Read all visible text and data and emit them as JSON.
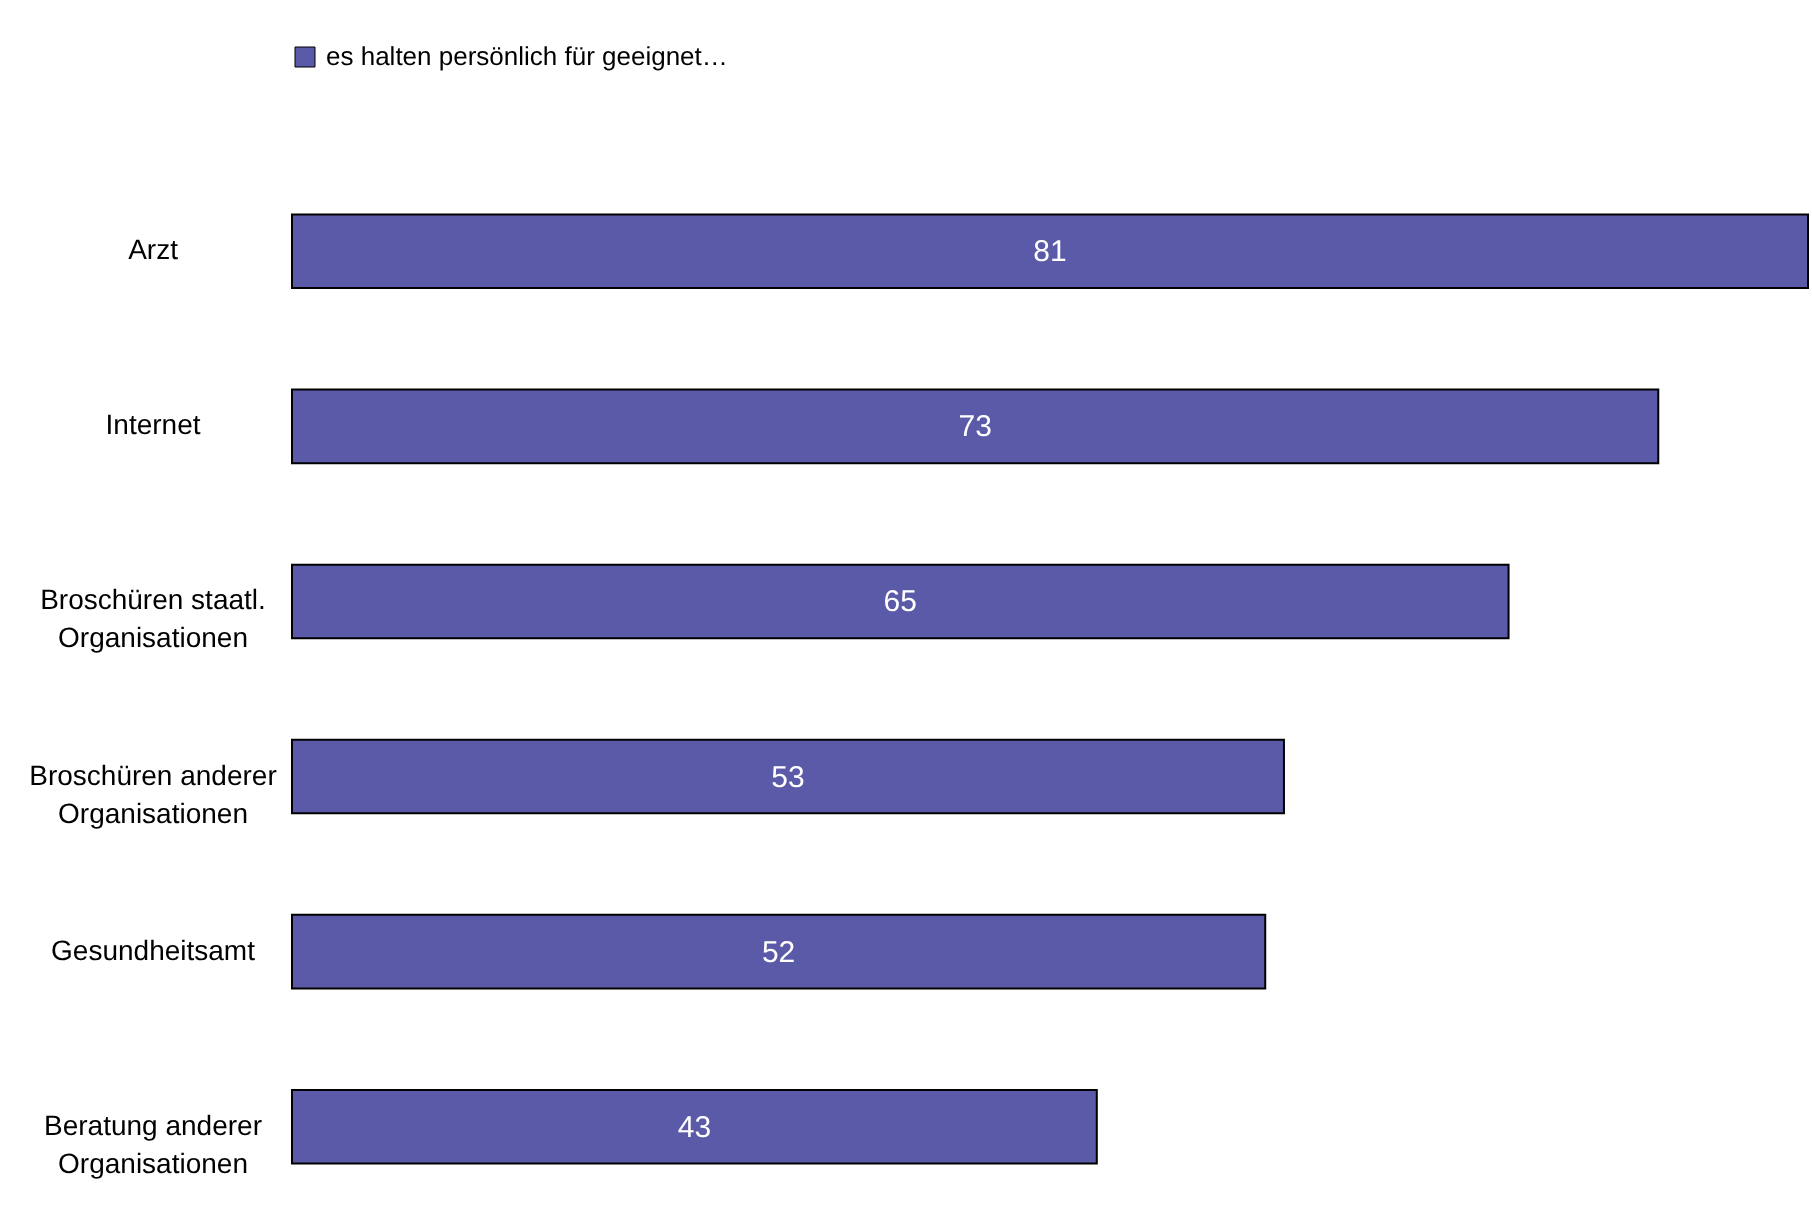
{
  "chart_data": {
    "type": "bar",
    "orientation": "horizontal",
    "categories": [
      "Arzt",
      "Internet",
      "Broschüren staatl. Organisationen",
      "Broschüren anderer Organisationen",
      "Gesundheitsamt",
      "Beratung anderer Organisationen"
    ],
    "series": [
      {
        "name": "es halten persönlich für geeignet…",
        "color": "#5a5aa8",
        "values": [
          81,
          73,
          65,
          53,
          52,
          43
        ]
      }
    ],
    "data_labels": true,
    "legend": "top",
    "grid": false
  }
}
